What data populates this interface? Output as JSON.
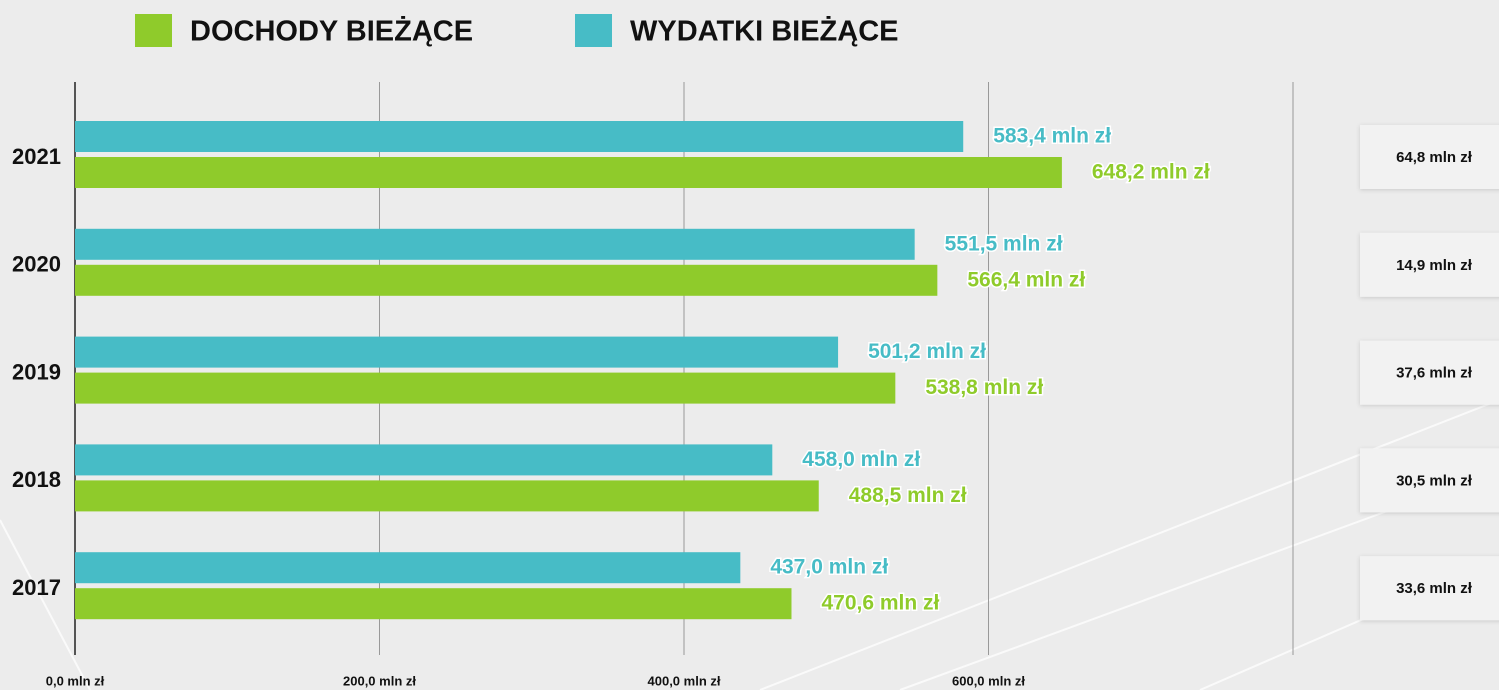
{
  "chart_data": {
    "type": "hbar",
    "categories": [
      "2021",
      "2020",
      "2019",
      "2018",
      "2017"
    ],
    "series": [
      {
        "name": "DOCHODY BIEŻĄCE",
        "color": "#8fcb2b",
        "values": [
          648.2,
          566.4,
          538.8,
          488.5,
          470.6
        ],
        "value_labels": [
          "648,2 mln zł",
          "566,4 mln zł",
          "538,8 mln zł",
          "488,5 mln zł",
          "470,6 mln zł"
        ]
      },
      {
        "name": "WYDATKI BIEŻĄCE",
        "color": "#47bcc6",
        "values": [
          583.4,
          551.5,
          501.2,
          458.0,
          437.0
        ],
        "value_labels": [
          "583,4 mln zł",
          "551,5 mln zł",
          "501,2 mln zł",
          "458,0 mln zł",
          "437,0 mln zł"
        ]
      }
    ],
    "balance": {
      "values": [
        64.8,
        14.9,
        37.6,
        30.5,
        33.6
      ],
      "value_labels": [
        "64,8 mln zł",
        "14,9 mln zł",
        "37,6 mln zł",
        "30,5 mln zł",
        "33,6 mln zł"
      ]
    },
    "xlim": [
      0,
      800
    ],
    "xticks": [
      {
        "value": 0,
        "label": "0,0 mln zł"
      },
      {
        "value": 200,
        "label": "200,0 mln zł"
      },
      {
        "value": 400,
        "label": "400,0 mln zł"
      },
      {
        "value": 600,
        "label": "600,0 mln zł"
      }
    ],
    "grid": true
  }
}
